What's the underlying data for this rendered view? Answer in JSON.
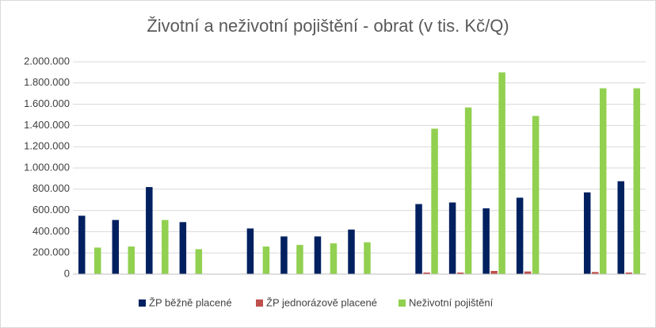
{
  "chart_data": {
    "type": "bar",
    "title": "Životní a neživotní pojištění - obrat (v tis. Kč/Q)",
    "categories": [
      null,
      null,
      null,
      null,
      null,
      null,
      null,
      null,
      null,
      null,
      null,
      null,
      null,
      null,
      null,
      null,
      null
    ],
    "series": [
      {
        "name": "ŽP běžně placené",
        "color": "#002060",
        "values": [
          550000,
          510000,
          820000,
          490000,
          null,
          430000,
          355000,
          355000,
          420000,
          null,
          660000,
          675000,
          620000,
          720000,
          null,
          770000,
          875000
        ]
      },
      {
        "name": "ŽP jednorázově placené",
        "color": "#c0504d",
        "values": [
          0,
          0,
          0,
          0,
          null,
          0,
          0,
          0,
          0,
          null,
          15000,
          15000,
          30000,
          25000,
          null,
          20000,
          15000
        ]
      },
      {
        "name": "Neživotní pojištění",
        "color": "#92d050",
        "values": [
          250000,
          260000,
          510000,
          235000,
          null,
          260000,
          275000,
          290000,
          300000,
          null,
          1370000,
          1570000,
          1900000,
          1490000,
          null,
          1750000,
          1750000
        ]
      }
    ],
    "ylim": [
      0,
      2000000
    ],
    "yticks": [
      0,
      {
        "value": 200000,
        "label": "200.000"
      },
      {
        "value": 400000,
        "label": "400.000"
      },
      {
        "value": 600000,
        "label": "600.000"
      },
      {
        "value": 800000,
        "label": "800.000"
      },
      {
        "value": 1000000,
        "label": "1.000.000"
      },
      {
        "value": 1200000,
        "label": "1.200.000"
      },
      {
        "value": 1400000,
        "label": "1.400.000"
      },
      {
        "value": 1600000,
        "label": "1.600.000"
      },
      {
        "value": 1800000,
        "label": "1.800.000"
      },
      {
        "value": 2000000,
        "label": "2.000.000"
      }
    ],
    "grid": true,
    "legend": "bottom"
  }
}
